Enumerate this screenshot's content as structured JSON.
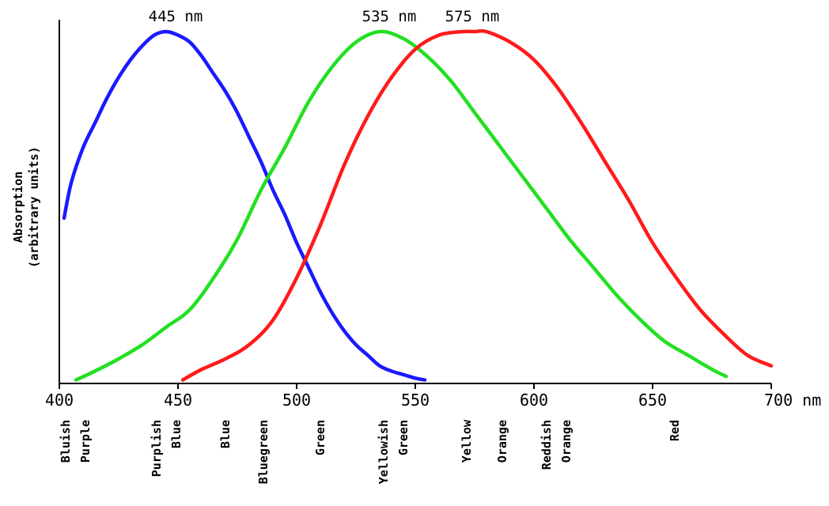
{
  "chart_data": {
    "type": "line",
    "title": "",
    "xlabel": "",
    "ylabel_lines": [
      "Absorption",
      "(arbitrary units)"
    ],
    "x_unit": "nm",
    "xlim": [
      400,
      700
    ],
    "ylim": [
      0,
      100
    ],
    "x_ticks": [
      400,
      450,
      500,
      550,
      600,
      650,
      700
    ],
    "x_tick_labels": [
      "400",
      "450",
      "500",
      "550",
      "600",
      "650",
      "700 nm"
    ],
    "grid": false,
    "series": [
      {
        "color": "#1a1aff",
        "peak_label": "445 nm",
        "x": [
          402,
          405,
          410,
          415,
          420,
          425,
          430,
          435,
          440,
          445,
          450,
          455,
          460,
          465,
          470,
          475,
          480,
          485,
          490,
          495,
          500,
          505,
          510,
          515,
          520,
          525,
          530,
          535,
          540,
          545,
          550,
          554
        ],
        "y": [
          47,
          57,
          67,
          74,
          81,
          87,
          92,
          96,
          99,
          100,
          99,
          97,
          93,
          88,
          83,
          77,
          70,
          63,
          55,
          48,
          40,
          33,
          26,
          20,
          15,
          11,
          8,
          5,
          3.5,
          2.5,
          1.5,
          1
        ]
      },
      {
        "color": "#22e022",
        "peak_label": "535 nm",
        "x": [
          407,
          415,
          425,
          435,
          445,
          455,
          465,
          475,
          485,
          495,
          505,
          515,
          525,
          535,
          545,
          555,
          565,
          575,
          585,
          595,
          605,
          615,
          625,
          635,
          645,
          655,
          665,
          675,
          681
        ],
        "y": [
          1,
          3.5,
          7,
          11,
          16,
          21,
          30,
          41,
          55,
          67,
          80,
          90,
          97,
          100,
          98,
          93,
          86,
          77,
          68,
          59,
          50,
          41,
          33,
          25,
          18,
          12,
          8,
          4,
          2
        ]
      },
      {
        "color": "#ff1a1a",
        "peak_label": "575 nm",
        "x": [
          452,
          460,
          470,
          480,
          490,
          500,
          510,
          520,
          530,
          540,
          550,
          560,
          570,
          575,
          580,
          590,
          600,
          610,
          620,
          630,
          640,
          650,
          660,
          670,
          680,
          690,
          700
        ],
        "y": [
          1,
          4,
          7,
          11,
          18,
          30,
          45,
          62,
          76,
          87,
          95,
          99,
          100,
          100,
          100,
          97,
          92,
          84,
          74,
          63,
          52,
          40,
          30,
          21,
          14,
          8,
          5
        ]
      }
    ],
    "color_bands": [
      {
        "lines": [
          "Bluish",
          "Purple"
        ]
      },
      {
        "lines": [
          "Purplish",
          "Blue"
        ]
      },
      {
        "lines": [
          "Blue"
        ]
      },
      {
        "lines": [
          "Bluegreen"
        ]
      },
      {
        "lines": [
          "Green"
        ]
      },
      {
        "lines": [
          "Yellowish",
          "Green"
        ]
      },
      {
        "lines": [
          "Yellow"
        ]
      },
      {
        "lines": [
          "Orange"
        ]
      },
      {
        "lines": [
          "Reddish",
          "Orange"
        ]
      },
      {
        "lines": [
          "Red"
        ]
      }
    ]
  }
}
